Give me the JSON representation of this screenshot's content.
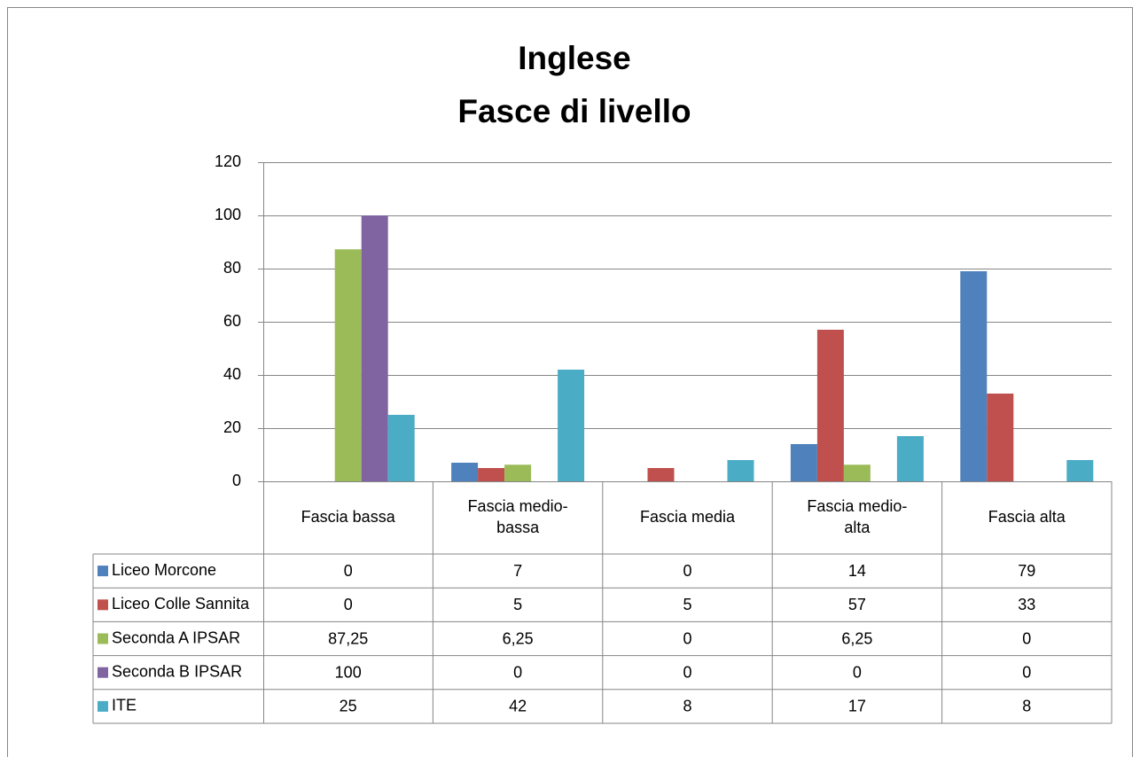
{
  "chart_data": {
    "type": "bar",
    "title": [
      "Inglese",
      "Fasce di livello"
    ],
    "categories": [
      "Fascia bassa",
      "Fascia medio-bassa",
      "Fascia media",
      "Fascia medio-alta",
      "Fascia alta"
    ],
    "series": [
      {
        "name": "Liceo Morcone",
        "color": "#4f81bd",
        "values": [
          0,
          7,
          0,
          14,
          79
        ]
      },
      {
        "name": "Liceo Colle Sannita",
        "color": "#c0504d",
        "values": [
          0,
          5,
          5,
          57,
          33
        ]
      },
      {
        "name": "Seconda A IPSAR",
        "color": "#9bbb59",
        "values": [
          87.25,
          6.25,
          0,
          6.25,
          0
        ],
        "value_labels": [
          "87,25",
          "6,25",
          "0",
          "6,25",
          "0"
        ]
      },
      {
        "name": "Seconda B IPSAR",
        "color": "#8064a2",
        "values": [
          100,
          0,
          0,
          0,
          0
        ]
      },
      {
        "name": "ITE",
        "color": "#4bacc6",
        "values": [
          25,
          42,
          8,
          17,
          8
        ]
      }
    ],
    "ylim": [
      0,
      120
    ],
    "yticks": [
      0,
      20,
      40,
      60,
      80,
      100,
      120
    ],
    "grid": true,
    "data_table": true
  }
}
